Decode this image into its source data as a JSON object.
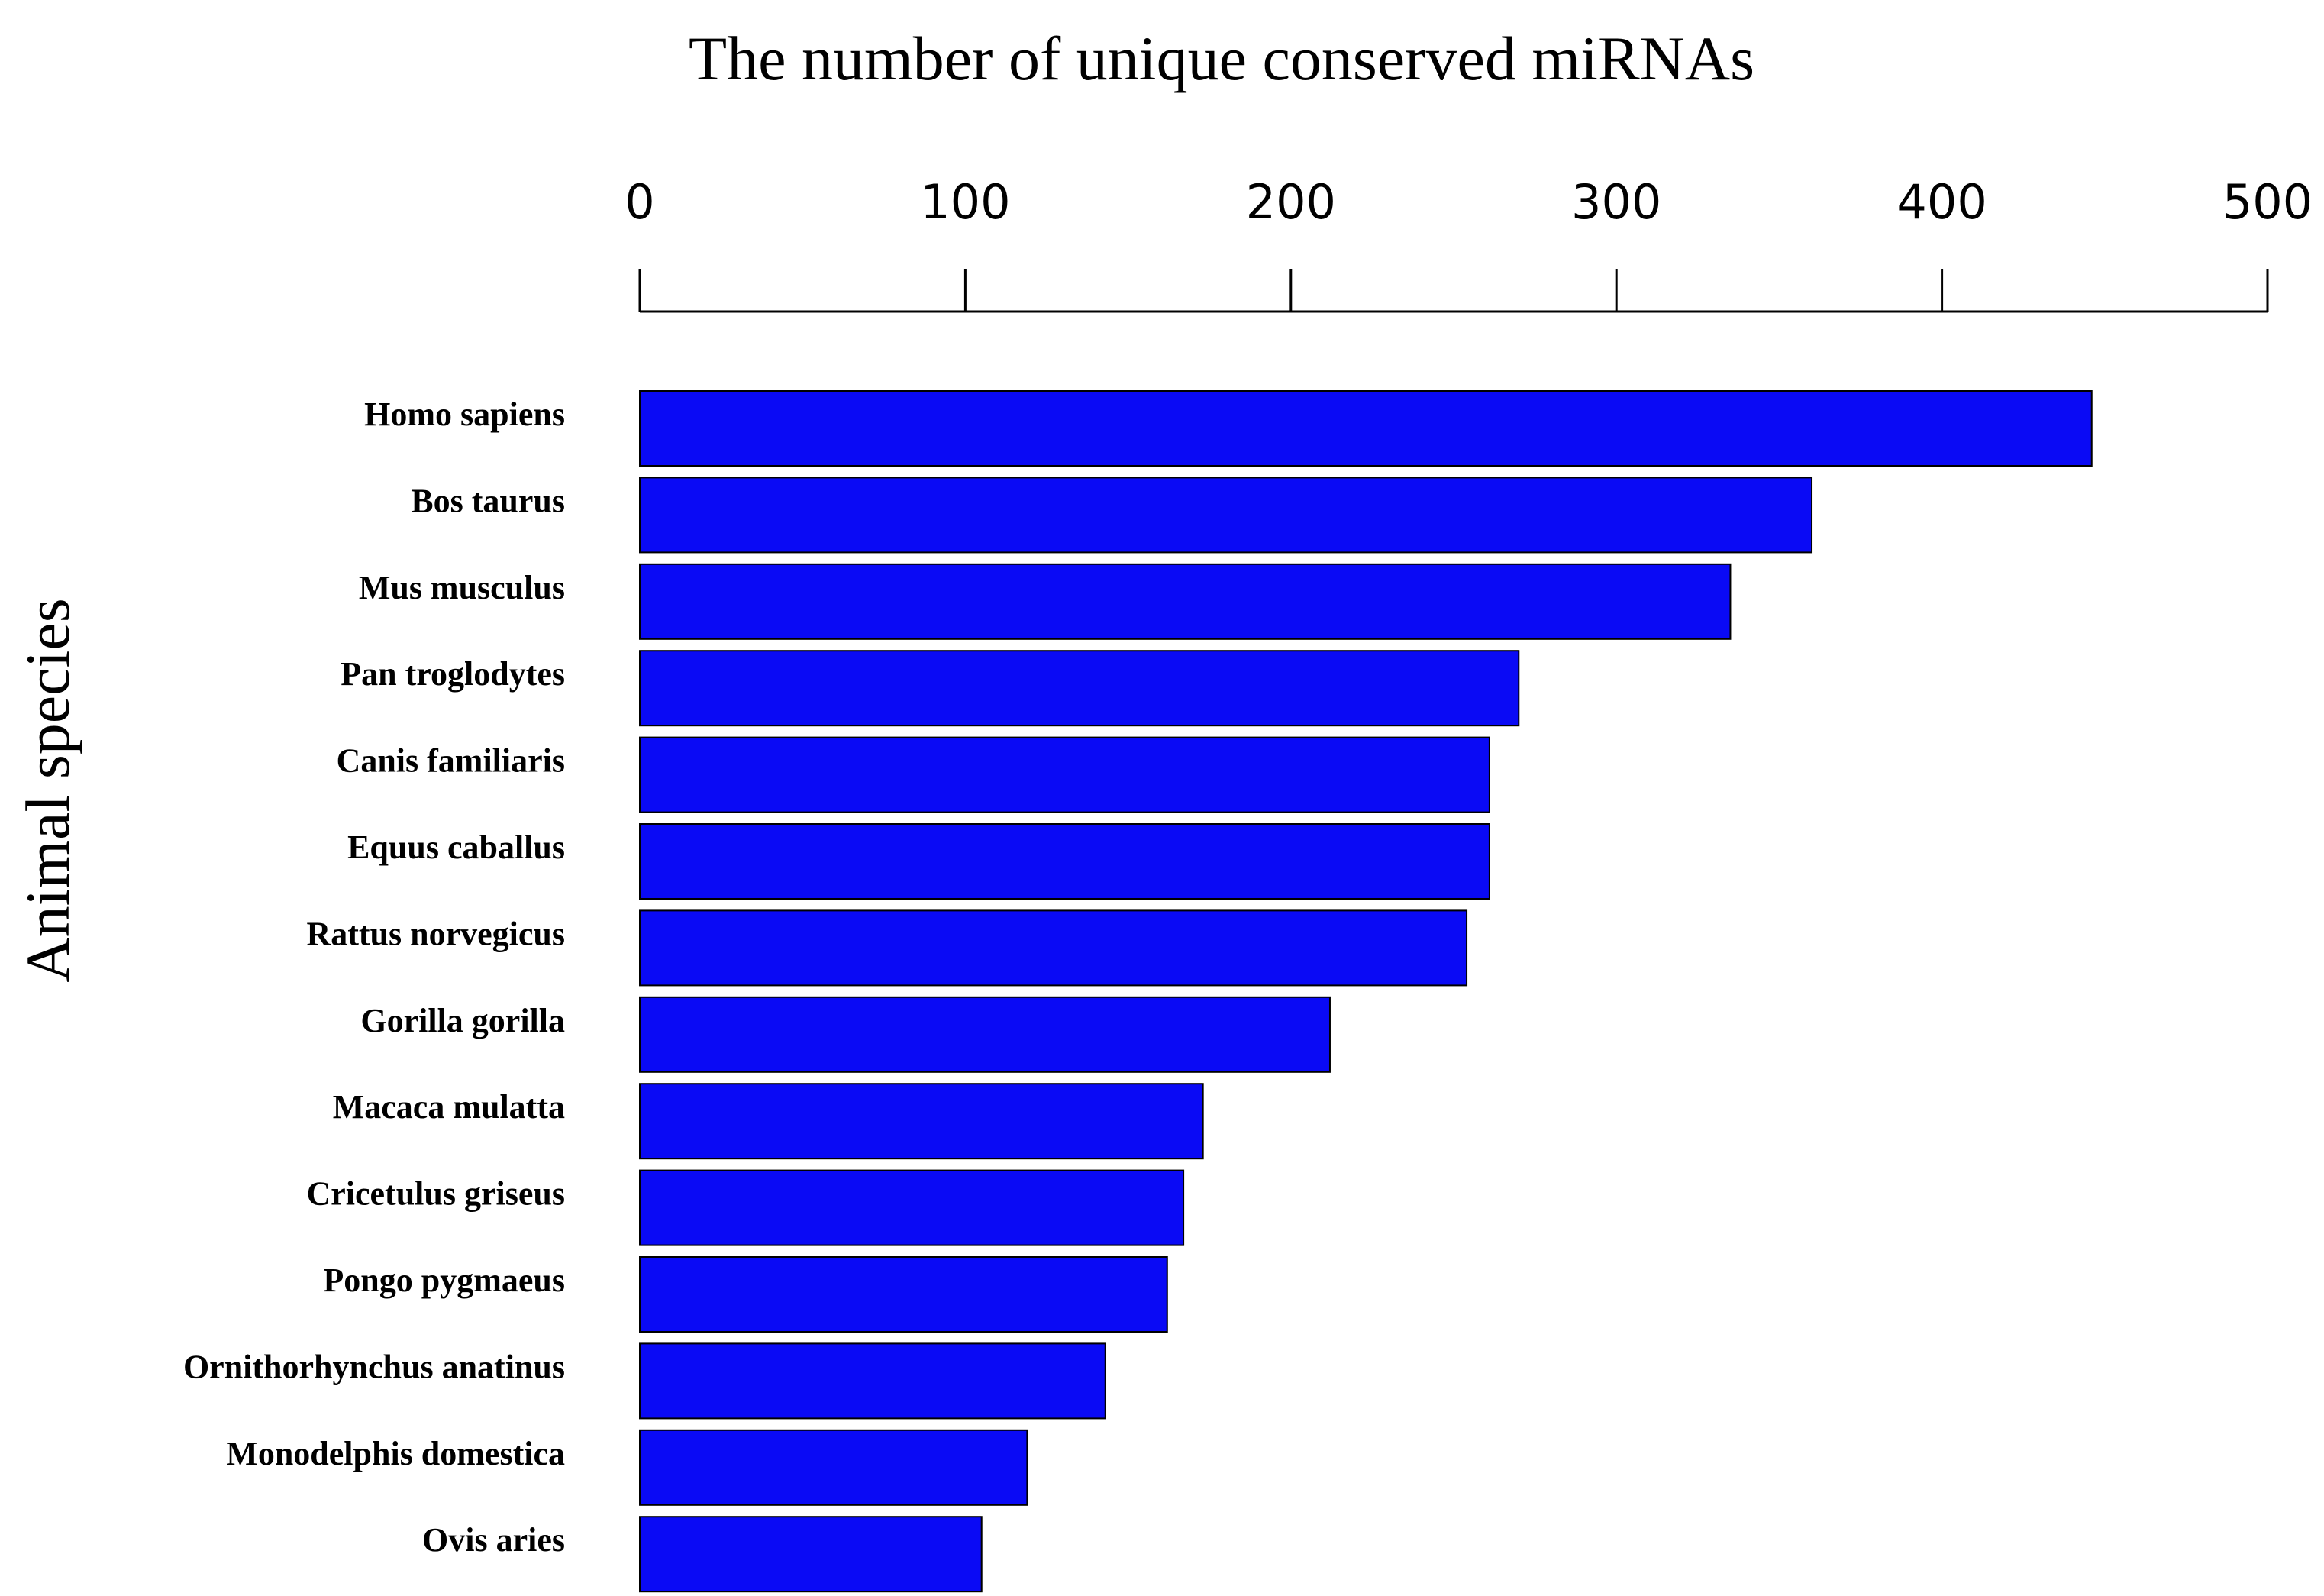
{
  "chart_data": {
    "type": "bar",
    "orientation": "horizontal",
    "title": "The number of unique conserved miRNAs",
    "xlabel": "",
    "ylabel": "Animal species",
    "xlim": [
      0,
      500
    ],
    "xticks": [
      0,
      100,
      200,
      300,
      400,
      500
    ],
    "x_axis_position": "top",
    "grid": false,
    "legend": "none",
    "bar_color": "#0A0AF5",
    "categories": [
      "Homo sapiens",
      "Bos taurus",
      "Mus musculus",
      "Pan troglodytes",
      "Canis familiaris",
      "Equus caballus",
      "Rattus norvegicus",
      "Gorilla gorilla",
      "Macaca mulatta",
      "Cricetulus griseus",
      "Pongo pygmaeus",
      "Ornithorhynchus anatinus",
      "Monodelphis domestica",
      "Ovis aries"
    ],
    "values": [
      446,
      360,
      335,
      270,
      261,
      261,
      254,
      212,
      173,
      167,
      162,
      143,
      119,
      105
    ]
  }
}
